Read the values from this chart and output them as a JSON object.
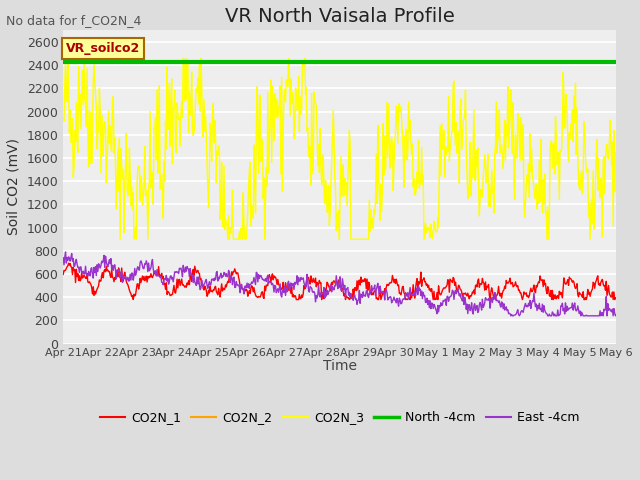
{
  "title": "VR North Vaisala Profile",
  "subtitle": "No data for f_CO2N_4",
  "ylabel": "Soil CO2 (mV)",
  "xlabel": "Time",
  "ylim": [
    0,
    2700
  ],
  "yticks": [
    0,
    200,
    400,
    600,
    800,
    1000,
    1200,
    1400,
    1600,
    1800,
    2000,
    2200,
    2400,
    2600
  ],
  "x_tick_labels": [
    "Apr 21",
    "Apr 22",
    "Apr 23",
    "Apr 24",
    "Apr 25",
    "Apr 26",
    "Apr 27",
    "Apr 28",
    "Apr 29",
    "Apr 30",
    "May 1",
    "May 2",
    "May 3",
    "May 4",
    "May 5",
    "May 6"
  ],
  "north_line_value": 2430,
  "legend_labels": [
    "CO2N_1",
    "CO2N_2",
    "CO2N_3",
    "North -4cm",
    "East -4cm"
  ],
  "legend_colors": [
    "#ff0000",
    "#ffa500",
    "#ffff00",
    "#00bb00",
    "#9933cc"
  ],
  "line_widths": [
    1.0,
    1.0,
    1.0,
    3.0,
    1.0
  ],
  "vr_soilco2_color": "#aa0000",
  "vr_soilco2_bg": "#ffff99",
  "vr_soilco2_border": "#aa6600",
  "bg_color": "#dddddd",
  "plot_bg": "#eeeeee",
  "grid_color": "#ffffff",
  "title_fontsize": 14,
  "axis_label_fontsize": 10,
  "tick_fontsize": 9,
  "legend_fontsize": 9,
  "seed": 42
}
